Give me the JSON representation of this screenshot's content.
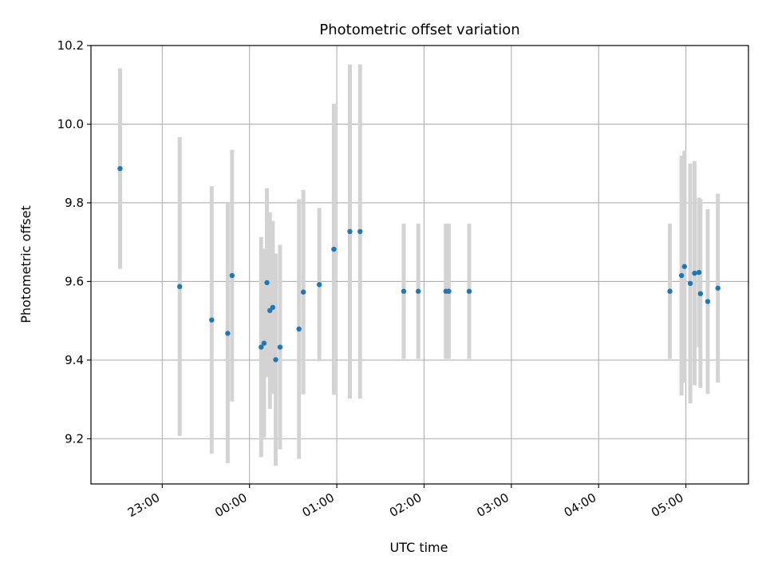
{
  "chart_data": {
    "type": "scatter",
    "title": "Photometric offset variation",
    "xlabel": "UTC time",
    "ylabel": "Photometric offset",
    "grid": true,
    "legend": "none",
    "xlim": [
      "22:11",
      "05:43"
    ],
    "ylim": [
      9.085,
      10.2
    ],
    "x_ticks": [
      "23:00",
      "00:00",
      "01:00",
      "02:00",
      "03:00",
      "04:00",
      "05:00"
    ],
    "y_ticks": [
      "9.2",
      "9.4",
      "9.6",
      "9.8",
      "10.0",
      "10.2"
    ],
    "y_tick_values": [
      9.2,
      9.4,
      9.6,
      9.8,
      10.0,
      10.2
    ],
    "colors": {
      "point": "#1f77b4",
      "errorbar": "#d3d3d3",
      "grid": "#b0b0b0"
    },
    "series": [
      {
        "points": [
          {
            "x": "22:31",
            "y": 9.887,
            "err": 0.255
          },
          {
            "x": "23:12",
            "y": 9.587,
            "err": 0.38
          },
          {
            "x": "23:34",
            "y": 9.502,
            "err": 0.34
          },
          {
            "x": "23:45",
            "y": 9.468,
            "err": 0.33
          },
          {
            "x": "23:48",
            "y": 9.615,
            "err": 0.32
          },
          {
            "x": "00:08",
            "y": 9.433,
            "err": 0.28
          },
          {
            "x": "00:10",
            "y": 9.443,
            "err": 0.24
          },
          {
            "x": "00:12",
            "y": 9.597,
            "err": 0.24
          },
          {
            "x": "00:14",
            "y": 9.526,
            "err": 0.25
          },
          {
            "x": "00:16",
            "y": 9.534,
            "err": 0.22
          },
          {
            "x": "00:18",
            "y": 9.401,
            "err": 0.27
          },
          {
            "x": "00:21",
            "y": 9.433,
            "err": 0.26
          },
          {
            "x": "00:34",
            "y": 9.479,
            "err": 0.33
          },
          {
            "x": "00:37",
            "y": 9.573,
            "err": 0.26
          },
          {
            "x": "00:48",
            "y": 9.592,
            "err": 0.195
          },
          {
            "x": "00:58",
            "y": 9.682,
            "err": 0.37
          },
          {
            "x": "01:09",
            "y": 9.727,
            "err": 0.425
          },
          {
            "x": "01:16",
            "y": 9.727,
            "err": 0.425
          },
          {
            "x": "01:46",
            "y": 9.575,
            "err": 0.172
          },
          {
            "x": "01:56",
            "y": 9.575,
            "err": 0.172
          },
          {
            "x": "02:15",
            "y": 9.575,
            "err": 0.172
          },
          {
            "x": "02:17",
            "y": 9.575,
            "err": 0.172
          },
          {
            "x": "02:31",
            "y": 9.575,
            "err": 0.172
          },
          {
            "x": "04:49",
            "y": 9.575,
            "err": 0.172
          },
          {
            "x": "04:57",
            "y": 9.615,
            "err": 0.305
          },
          {
            "x": "04:59",
            "y": 9.638,
            "err": 0.295
          },
          {
            "x": "05:03",
            "y": 9.595,
            "err": 0.305
          },
          {
            "x": "05:06",
            "y": 9.621,
            "err": 0.285
          },
          {
            "x": "05:09",
            "y": 9.623,
            "err": 0.19
          },
          {
            "x": "05:10",
            "y": 9.569,
            "err": 0.24
          },
          {
            "x": "05:15",
            "y": 9.549,
            "err": 0.235
          },
          {
            "x": "05:22",
            "y": 9.583,
            "err": 0.24
          }
        ]
      }
    ]
  }
}
